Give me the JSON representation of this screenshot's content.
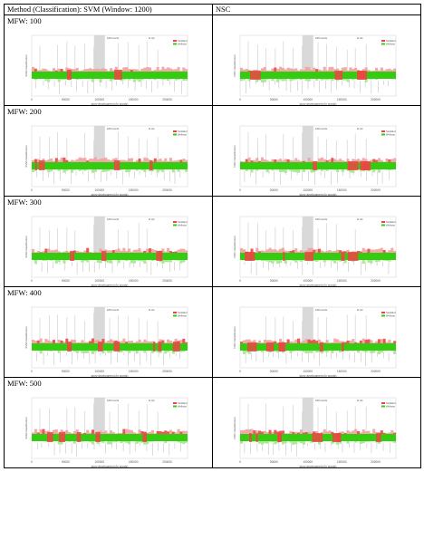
{
  "table": {
    "col_headers": [
      "Method (Classification): SVM (Window: 1200)",
      "NSC"
    ],
    "rows": [
      {
        "label": "MFW: 100"
      },
      {
        "label": "MFW: 200"
      },
      {
        "label": "MFW: 300"
      },
      {
        "label": "MFW: 400"
      },
      {
        "label": "MFW: 500"
      }
    ]
  },
  "chart_text": {
    "xlabel": "story development (in words)",
    "ylabel_svm": "SVM classification",
    "ylabel_nsc": "NSC classification",
    "xticks": [
      "0",
      "50000",
      "100000",
      "150000",
      "200000"
    ],
    "legend": [
      "Stoddard",
      "Wellman"
    ],
    "annot_left": "1200 words",
    "annot_right": "11 tok"
  },
  "colors": {
    "green": "#33cc11",
    "red": "#ee4444",
    "pink": "#f2a0a0",
    "lightgreen": "#aee69a",
    "gray": "#d0d0d0"
  },
  "chart_data": [
    {
      "type": "area",
      "method": "SVM",
      "mfw": 100,
      "x_range": [
        0,
        230000
      ],
      "series": [
        {
          "name": "Stoddard"
        },
        {
          "name": "Wellman"
        }
      ],
      "red_intensity": 0.15
    },
    {
      "type": "area",
      "method": "NSC",
      "mfw": 100,
      "x_range": [
        0,
        230000
      ],
      "series": [
        {
          "name": "Stoddard"
        },
        {
          "name": "Wellman"
        }
      ],
      "red_intensity": 0.2
    },
    {
      "type": "area",
      "method": "SVM",
      "mfw": 200,
      "x_range": [
        0,
        230000
      ],
      "series": [
        {
          "name": "Stoddard"
        },
        {
          "name": "Wellman"
        }
      ],
      "red_intensity": 0.3
    },
    {
      "type": "area",
      "method": "NSC",
      "mfw": 200,
      "x_range": [
        0,
        230000
      ],
      "series": [
        {
          "name": "Stoddard"
        },
        {
          "name": "Wellman"
        }
      ],
      "red_intensity": 0.35
    },
    {
      "type": "area",
      "method": "SVM",
      "mfw": 300,
      "x_range": [
        0,
        230000
      ],
      "series": [
        {
          "name": "Stoddard"
        },
        {
          "name": "Wellman"
        }
      ],
      "red_intensity": 0.3
    },
    {
      "type": "area",
      "method": "NSC",
      "mfw": 300,
      "x_range": [
        0,
        230000
      ],
      "series": [
        {
          "name": "Stoddard"
        },
        {
          "name": "Wellman"
        }
      ],
      "red_intensity": 0.55
    },
    {
      "type": "area",
      "method": "SVM",
      "mfw": 400,
      "x_range": [
        0,
        230000
      ],
      "series": [
        {
          "name": "Stoddard"
        },
        {
          "name": "Wellman"
        }
      ],
      "red_intensity": 0.45
    },
    {
      "type": "area",
      "method": "NSC",
      "mfw": 400,
      "x_range": [
        0,
        230000
      ],
      "series": [
        {
          "name": "Stoddard"
        },
        {
          "name": "Wellman"
        }
      ],
      "red_intensity": 0.65
    },
    {
      "type": "area",
      "method": "SVM",
      "mfw": 500,
      "x_range": [
        0,
        230000
      ],
      "series": [
        {
          "name": "Stoddard"
        },
        {
          "name": "Wellman"
        }
      ],
      "red_intensity": 0.4
    },
    {
      "type": "area",
      "method": "NSC",
      "mfw": 500,
      "x_range": [
        0,
        230000
      ],
      "series": [
        {
          "name": "Stoddard"
        },
        {
          "name": "Wellman"
        }
      ],
      "red_intensity": 0.7
    }
  ]
}
